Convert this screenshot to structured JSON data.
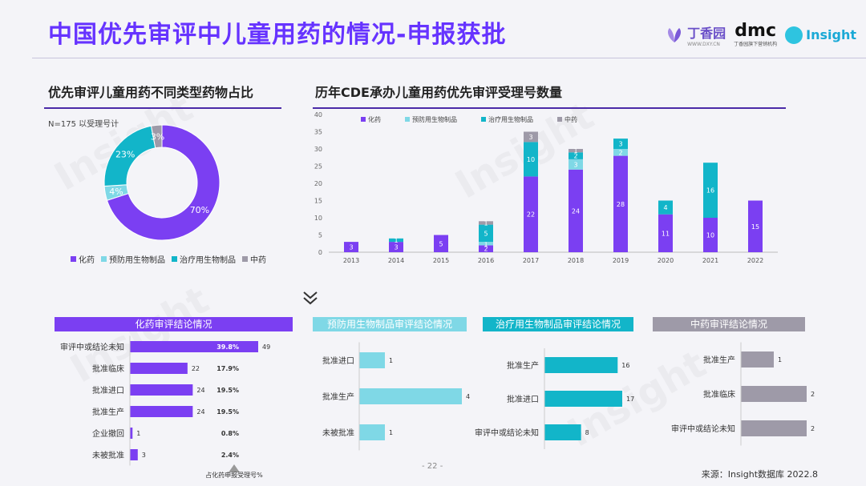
{
  "title": "中国优先审评中儿童用药的情况-申报获批",
  "logos": {
    "dxy_name": "丁香园",
    "dxy_sub": "WWW.DXY.CN",
    "dmc_name": "dmc",
    "dmc_sub": "丁香园旗下营销机构",
    "insight_name": "Insight"
  },
  "left_section_title": "优先审评儿童用药不同类型药物占比",
  "right_section_title": "历年CDE承办儿童用药优先审评受理号数量",
  "note": "N=175 以受理号计",
  "legend": [
    "化药",
    "预防用生物制品",
    "治疗用生物制品",
    "中药"
  ],
  "colors": {
    "chem": "#7b3ff2",
    "prev": "#7fd8e6",
    "ther": "#12b5c9",
    "tcm": "#9e9aa8",
    "accent": "#6633ff"
  },
  "chart_data": [
    {
      "type": "pie",
      "categories": [
        "化药",
        "预防用生物制品",
        "治疗用生物制品",
        "中药"
      ],
      "values": [
        70,
        4,
        23,
        3
      ],
      "labels": [
        "70%",
        "4%",
        "23%",
        "3%"
      ]
    },
    {
      "type": "bar",
      "stacked": true,
      "categories": [
        "2013",
        "2014",
        "2015",
        "2016",
        "2017",
        "2018",
        "2019",
        "2020",
        "2021",
        "2022"
      ],
      "ylim": [
        0,
        40
      ],
      "yticks": [
        0,
        5,
        10,
        15,
        20,
        25,
        30,
        35,
        40
      ],
      "series": [
        {
          "name": "化药",
          "values": [
            3,
            3,
            5,
            2,
            22,
            24,
            28,
            11,
            10,
            15
          ]
        },
        {
          "name": "预防用生物制品",
          "values": [
            0,
            0,
            0,
            1,
            0,
            3,
            2,
            0,
            0,
            0
          ]
        },
        {
          "name": "治疗用生物制品",
          "values": [
            0,
            1,
            0,
            5,
            10,
            2,
            3,
            4,
            16,
            0
          ]
        },
        {
          "name": "中药",
          "values": [
            0,
            0,
            0,
            1,
            3,
            1,
            0,
            0,
            0,
            0
          ]
        }
      ],
      "legend_position": "top-left"
    },
    {
      "type": "bar",
      "orientation": "horizontal",
      "title": "化药审评结论情况",
      "categories": [
        "审评中或结论未知",
        "批准临床",
        "批准进口",
        "批准生产",
        "企业撤回",
        "未被批准"
      ],
      "values": [
        49,
        22,
        24,
        24,
        1,
        3
      ],
      "percent_labels": [
        "39.8%",
        "17.9%",
        "19.5%",
        "19.5%",
        "0.8%",
        "2.4%"
      ],
      "footnote": "占化药申报受理号%"
    },
    {
      "type": "bar",
      "orientation": "horizontal",
      "title": "预防用生物制品审评结论情况",
      "categories": [
        "批准进口",
        "批准生产",
        "未被批准"
      ],
      "values": [
        1,
        4,
        1
      ]
    },
    {
      "type": "bar",
      "orientation": "horizontal",
      "title": "治疗用生物制品审评结论情况",
      "categories": [
        "批准生产",
        "批准进口",
        "审评中或结论未知"
      ],
      "values": [
        16,
        17,
        8
      ]
    },
    {
      "type": "bar",
      "orientation": "horizontal",
      "title": "中药审评结论情况",
      "categories": [
        "批准生产",
        "批准临床",
        "审评中或结论未知"
      ],
      "values": [
        1,
        2,
        2
      ]
    }
  ],
  "page_number": "- 22 -",
  "source": "来源：Insight数据库 2022.8"
}
